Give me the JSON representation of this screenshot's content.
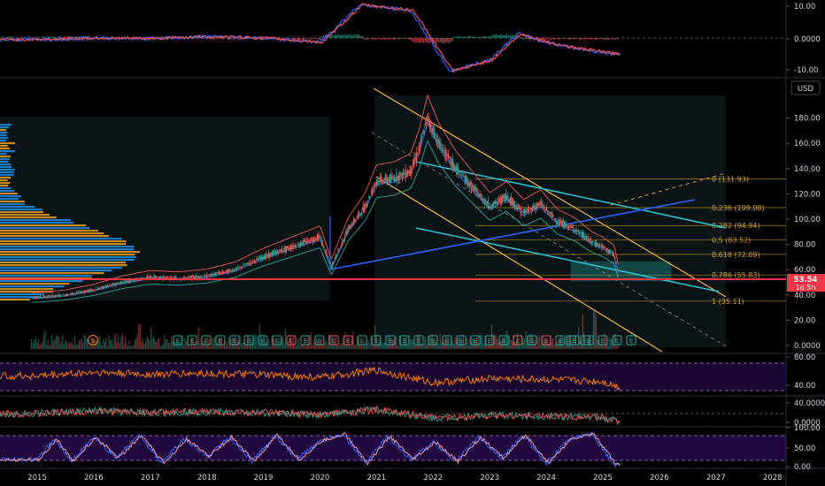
{
  "currency_label": "USD",
  "price_badge": {
    "price": "53.54",
    "countdown": "1d 5h"
  },
  "x_axis_years": [
    "2015",
    "2016",
    "2017",
    "2018",
    "2019",
    "2020",
    "2021",
    "2022",
    "2023",
    "2024",
    "2025",
    "2026",
    "2027",
    "2028"
  ],
  "price_axis_ticks": [
    "180.00",
    "160.00",
    "140.00",
    "120.00",
    "100.00",
    "80.00",
    "60.00",
    "40.00",
    "20.00",
    "0.0000"
  ],
  "macd_axis_ticks": [
    "10.00",
    "0.0000",
    "-10.00"
  ],
  "rsi_axis_ticks": [
    "80.00",
    "40.00"
  ],
  "osc_axis_ticks": [
    "40.0000",
    "0.0000"
  ],
  "stoch_axis_ticks": [
    "100.00",
    "50.00",
    "0.00"
  ],
  "colors": {
    "up": "#26a69a",
    "down": "#ef5350",
    "fib": "#d4a017",
    "channel": "#f9b233",
    "trend_blue": "#2962ff",
    "teal": "#26c6da",
    "support": "#f23645"
  },
  "chart_data": [
    {
      "type": "line",
      "panel": "price",
      "x": [
        2015.0,
        2015.5,
        2016.0,
        2016.5,
        2017.0,
        2017.5,
        2018.0,
        2018.5,
        2019.0,
        2019.5,
        2020.0,
        2020.2,
        2020.5,
        2020.8,
        2021.0,
        2021.3,
        2021.6,
        2021.75,
        2021.9,
        2022.1,
        2022.4,
        2022.7,
        2023.0,
        2023.3,
        2023.6,
        2023.9,
        2024.2,
        2024.5,
        2024.8,
        2025.0,
        2025.2,
        2025.3
      ],
      "series": [
        {
          "values": [
            38,
            40,
            44,
            50,
            54,
            53,
            55,
            60,
            70,
            78,
            86,
            62,
            92,
            110,
            130,
            132,
            138,
            155,
            180,
            160,
            140,
            125,
            110,
            118,
            105,
            112,
            98,
            92,
            82,
            78,
            72,
            53.54
          ]
        }
      ],
      "ylim": [
        0,
        200
      ],
      "annotations": {
        "fib_levels": [
          {
            "label": "0 (131.93)",
            "value": 131.93
          },
          {
            "label": "0.236 (109.08)",
            "value": 109.08
          },
          {
            "label": "0.382 (94.94)",
            "value": 94.94
          },
          {
            "label": "0.5 (83.52)",
            "value": 83.52
          },
          {
            "label": "0.618 (72.09)",
            "value": 72.09
          },
          {
            "label": "0.786 (55.83)",
            "value": 55.83
          },
          {
            "label": "1 (35.11)",
            "value": 35.11
          }
        ],
        "support_line": 53.54,
        "earnings_markers": [
          "S",
          "E",
          "E",
          "E",
          "E",
          "E",
          "E",
          "E",
          "E",
          "E",
          "E",
          "E",
          "E",
          "E",
          "E",
          "E",
          "E",
          "E",
          "E",
          "E",
          "E",
          "E",
          "E",
          "E",
          "E",
          "E",
          "E",
          "E",
          "E",
          "E",
          "E",
          "E",
          "E",
          "E",
          "E",
          "E"
        ]
      }
    },
    {
      "type": "line",
      "panel": "macd",
      "x": [
        2015,
        2016,
        2017,
        2018,
        2019,
        2020,
        2020.7,
        2021.6,
        2022.3,
        2023.0,
        2023.5,
        2024.0,
        2024.5,
        2025.2
      ],
      "series": [
        {
          "values": [
            0,
            0.5,
            0.3,
            1,
            0.5,
            -1,
            12,
            10,
            -11,
            -7,
            2,
            -1,
            -3,
            -5
          ]
        }
      ],
      "ylim": [
        -12,
        13
      ]
    },
    {
      "type": "line",
      "panel": "rsi",
      "x": [
        2015,
        2016,
        2017,
        2018,
        2019,
        2020,
        2021,
        2022,
        2023,
        2024,
        2025,
        2025.3
      ],
      "series": [
        {
          "values": [
            55,
            62,
            58,
            60,
            57,
            52,
            66,
            42,
            50,
            48,
            44,
            33
          ]
        }
      ],
      "ylim": [
        20,
        95
      ]
    },
    {
      "type": "line",
      "panel": "stochastic",
      "x": [
        2015,
        2015.3,
        2015.6,
        2016,
        2016.4,
        2016.8,
        2017.2,
        2017.6,
        2018,
        2018.4,
        2018.8,
        2019.2,
        2019.6,
        2020,
        2020.4,
        2020.8,
        2021.2,
        2021.6,
        2022,
        2022.4,
        2022.8,
        2023.2,
        2023.6,
        2024,
        2024.4,
        2024.8,
        2025.2
      ],
      "series": [
        {
          "values": [
            20,
            80,
            15,
            85,
            25,
            90,
            10,
            80,
            30,
            85,
            15,
            90,
            20,
            75,
            95,
            10,
            88,
            20,
            70,
            15,
            85,
            25,
            90,
            10,
            80,
            95,
            5
          ]
        }
      ],
      "ylim": [
        0,
        110
      ]
    }
  ]
}
